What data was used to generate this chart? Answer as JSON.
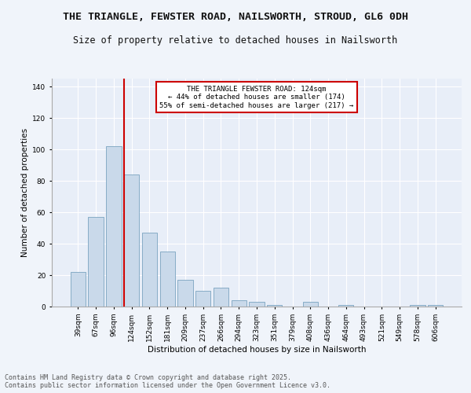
{
  "title": "THE TRIANGLE, FEWSTER ROAD, NAILSWORTH, STROUD, GL6 0DH",
  "subtitle": "Size of property relative to detached houses in Nailsworth",
  "xlabel": "Distribution of detached houses by size in Nailsworth",
  "ylabel": "Number of detached properties",
  "bar_color": "#c9d9ea",
  "bar_edge_color": "#7aa3c0",
  "background_color": "#e8eef8",
  "grid_color": "#ffffff",
  "categories": [
    "39sqm",
    "67sqm",
    "96sqm",
    "124sqm",
    "152sqm",
    "181sqm",
    "209sqm",
    "237sqm",
    "266sqm",
    "294sqm",
    "323sqm",
    "351sqm",
    "379sqm",
    "408sqm",
    "436sqm",
    "464sqm",
    "493sqm",
    "521sqm",
    "549sqm",
    "578sqm",
    "606sqm"
  ],
  "values": [
    22,
    57,
    102,
    84,
    47,
    35,
    17,
    10,
    12,
    4,
    3,
    1,
    0,
    3,
    0,
    1,
    0,
    0,
    0,
    1,
    1
  ],
  "red_line_index": 3,
  "annotation_text": "THE TRIANGLE FEWSTER ROAD: 124sqm\n← 44% of detached houses are smaller (174)\n55% of semi-detached houses are larger (217) →",
  "annotation_box_color": "#ffffff",
  "annotation_box_edge": "#cc0000",
  "red_line_color": "#cc0000",
  "ylim": [
    0,
    145
  ],
  "yticks": [
    0,
    20,
    40,
    60,
    80,
    100,
    120,
    140
  ],
  "footer": "Contains HM Land Registry data © Crown copyright and database right 2025.\nContains public sector information licensed under the Open Government Licence v3.0.",
  "title_fontsize": 9.5,
  "subtitle_fontsize": 8.5,
  "xlabel_fontsize": 7.5,
  "ylabel_fontsize": 7.5,
  "tick_fontsize": 6.5,
  "annotation_fontsize": 6.5,
  "footer_fontsize": 6.0
}
